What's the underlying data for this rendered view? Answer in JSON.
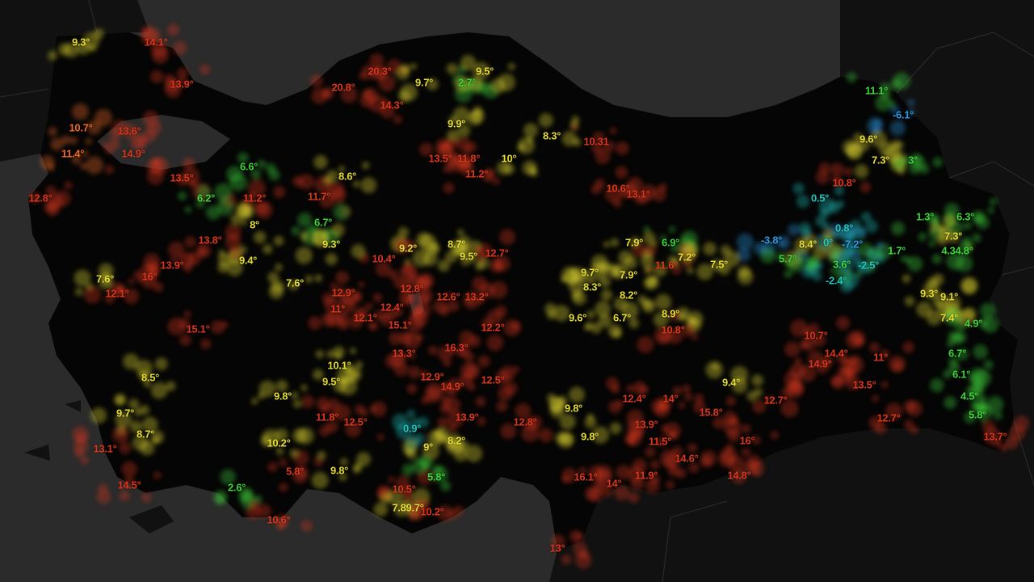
{
  "map": {
    "colors": {
      "sea": "#2b2b2b",
      "outside_land": "#111111",
      "country_land": "#050505",
      "border": "#2e2e2e",
      "red": "#d8371c",
      "orange": "#f06a24",
      "yellow": "#e4dc32",
      "green": "#3fd23a",
      "cyan": "#22c6c0",
      "blue": "#2c98e2"
    },
    "temperature_labels": [
      {
        "t": "9.3°",
        "c": "yellow"
      },
      {
        "t": "14.1°",
        "c": "red"
      },
      {
        "t": "13.9°",
        "c": "red"
      },
      {
        "t": "13.6°",
        "c": "red"
      },
      {
        "t": "14.9°",
        "c": "red"
      },
      {
        "t": "10.7°",
        "c": "orange"
      },
      {
        "t": "11.4°",
        "c": "orange"
      },
      {
        "t": "6.6°",
        "c": "green"
      },
      {
        "t": "20.3°",
        "c": "red"
      },
      {
        "t": "20.8°",
        "c": "red"
      },
      {
        "t": "14.3°",
        "c": "red"
      },
      {
        "t": "9.7°",
        "c": "yellow"
      },
      {
        "t": "2.7°",
        "c": "green"
      },
      {
        "t": "9.5°",
        "c": "yellow"
      },
      {
        "t": "9.9°",
        "c": "yellow"
      },
      {
        "t": "8.3°",
        "c": "yellow"
      },
      {
        "t": "13.5°",
        "c": "red"
      },
      {
        "t": "10°",
        "c": "yellow"
      },
      {
        "t": "11.8°",
        "c": "red"
      },
      {
        "t": "10.31",
        "c": "red"
      },
      {
        "t": "-6.1°",
        "c": "blue"
      },
      {
        "t": "9.6°",
        "c": "yellow"
      },
      {
        "t": "7.3°",
        "c": "yellow"
      },
      {
        "t": "3°",
        "c": "green"
      },
      {
        "t": "10.8°",
        "c": "red"
      },
      {
        "t": "0.5°",
        "c": "cyan"
      },
      {
        "t": "6.3°",
        "c": "green"
      },
      {
        "t": "1.3°",
        "c": "green"
      },
      {
        "t": "7.3°",
        "c": "yellow"
      },
      {
        "t": "4.34.8°",
        "c": "green"
      },
      {
        "t": "1.7°",
        "c": "green"
      },
      {
        "t": "0.8°",
        "c": "cyan"
      },
      {
        "t": "-7.2°",
        "c": "blue"
      },
      {
        "t": "0°",
        "c": "cyan"
      },
      {
        "t": "8.4°",
        "c": "yellow"
      },
      {
        "t": "-3.8°",
        "c": "blue"
      },
      {
        "t": "3.6°",
        "c": "green"
      },
      {
        "t": "-2.5°",
        "c": "cyan"
      },
      {
        "t": "-2.4°",
        "c": "cyan"
      },
      {
        "t": "5.7°",
        "c": "green"
      },
      {
        "t": "7.9°",
        "c": "yellow"
      },
      {
        "t": "6.9°",
        "c": "green"
      },
      {
        "t": "7.5°",
        "c": "yellow"
      },
      {
        "t": "11.6°",
        "c": "red"
      },
      {
        "t": "7.2°",
        "c": "yellow"
      },
      {
        "t": "7.9°",
        "c": "yellow"
      },
      {
        "t": "8.2°",
        "c": "yellow"
      },
      {
        "t": "8.9°",
        "c": "yellow"
      },
      {
        "t": "9.6°",
        "c": "yellow"
      },
      {
        "t": "6.7°",
        "c": "yellow"
      },
      {
        "t": "10.8°",
        "c": "red"
      },
      {
        "t": "9.3°",
        "c": "yellow"
      },
      {
        "t": "9.1°",
        "c": "yellow"
      },
      {
        "t": "7.4°",
        "c": "yellow"
      },
      {
        "t": "4.9°",
        "c": "green"
      },
      {
        "t": "6.7°",
        "c": "green"
      },
      {
        "t": "6.1°",
        "c": "green"
      },
      {
        "t": "4.5°",
        "c": "green"
      },
      {
        "t": "5.8°",
        "c": "green"
      },
      {
        "t": "13.7°",
        "c": "red"
      },
      {
        "t": "12.7°",
        "c": "red"
      },
      {
        "t": "13.5°",
        "c": "red"
      },
      {
        "t": "11°",
        "c": "red"
      },
      {
        "t": "14.4°",
        "c": "red"
      },
      {
        "t": "10.7°",
        "c": "red"
      },
      {
        "t": "14.9°",
        "c": "red"
      },
      {
        "t": "9.4°",
        "c": "yellow"
      },
      {
        "t": "14°",
        "c": "red"
      },
      {
        "t": "12.4°",
        "c": "red"
      },
      {
        "t": "9.8°",
        "c": "yellow"
      },
      {
        "t": "15.8°",
        "c": "red"
      },
      {
        "t": "16°",
        "c": "red"
      },
      {
        "t": "14.8°",
        "c": "red"
      },
      {
        "t": "13.9°",
        "c": "red"
      },
      {
        "t": "11.5°",
        "c": "red"
      },
      {
        "t": "14.6°",
        "c": "red"
      },
      {
        "t": "11.9°",
        "c": "red"
      },
      {
        "t": "14°",
        "c": "red"
      },
      {
        "t": "16.1°",
        "c": "red"
      },
      {
        "t": "13°",
        "c": "red"
      },
      {
        "t": "9.8°",
        "c": "yellow"
      },
      {
        "t": "12.7°",
        "c": "red"
      },
      {
        "t": "15.1°",
        "c": "red"
      },
      {
        "t": "12.1°",
        "c": "red"
      },
      {
        "t": "11°",
        "c": "red"
      },
      {
        "t": "12.9°",
        "c": "red"
      },
      {
        "t": "12.8°",
        "c": "red"
      },
      {
        "t": "12.2°",
        "c": "red"
      },
      {
        "t": "16.3°",
        "c": "red"
      },
      {
        "t": "12.5°",
        "c": "red"
      },
      {
        "t": "14.9°",
        "c": "red"
      },
      {
        "t": "12.9°",
        "c": "red"
      },
      {
        "t": "0.9°",
        "c": "cyan"
      },
      {
        "t": "9.5°",
        "c": "yellow"
      },
      {
        "t": "10.1°",
        "c": "yellow"
      },
      {
        "t": "11.8°",
        "c": "red"
      },
      {
        "t": "12.5°",
        "c": "red"
      },
      {
        "t": "13.9°",
        "c": "red"
      },
      {
        "t": "12.8°",
        "c": "red"
      },
      {
        "t": "8.2°",
        "c": "yellow"
      },
      {
        "t": "9°",
        "c": "yellow"
      },
      {
        "t": "9.8°",
        "c": "yellow"
      },
      {
        "t": "10.5°",
        "c": "red"
      },
      {
        "t": "5.8°",
        "c": "green"
      },
      {
        "t": "7.89.7°",
        "c": "yellow"
      },
      {
        "t": "10.2°",
        "c": "red"
      },
      {
        "t": "10.6°",
        "c": "red"
      },
      {
        "t": "14.5°",
        "c": "red"
      },
      {
        "t": "5.8°",
        "c": "red"
      },
      {
        "t": "2.6°",
        "c": "green"
      },
      {
        "t": "13.5°",
        "c": "red"
      },
      {
        "t": "11.2°",
        "c": "red"
      },
      {
        "t": "6.2°",
        "c": "green"
      },
      {
        "t": "12.8°",
        "c": "red"
      },
      {
        "t": "13.8°",
        "c": "red"
      },
      {
        "t": "13.9°",
        "c": "red"
      },
      {
        "t": "16°",
        "c": "red"
      },
      {
        "t": "7.6°",
        "c": "yellow"
      },
      {
        "t": "12.1°",
        "c": "red"
      },
      {
        "t": "15.1°",
        "c": "red"
      },
      {
        "t": "9.4°",
        "c": "yellow"
      },
      {
        "t": "8°",
        "c": "yellow"
      },
      {
        "t": "8.7°",
        "c": "yellow"
      },
      {
        "t": "9.5°",
        "c": "yellow"
      },
      {
        "t": "9.2°",
        "c": "yellow"
      },
      {
        "t": "12.7°",
        "c": "red"
      },
      {
        "t": "10.4°",
        "c": "red"
      },
      {
        "t": "12.6°",
        "c": "red"
      },
      {
        "t": "13.2°",
        "c": "red"
      },
      {
        "t": "11.2°",
        "c": "red"
      },
      {
        "t": "10.6°",
        "c": "red"
      },
      {
        "t": "13.1°",
        "c": "red"
      },
      {
        "t": "9.7°",
        "c": "yellow"
      },
      {
        "t": "8.3°",
        "c": "yellow"
      },
      {
        "t": "12.4°",
        "c": "red"
      },
      {
        "t": "13.3°",
        "c": "red"
      },
      {
        "t": "11.7°",
        "c": "red"
      },
      {
        "t": "8.6°",
        "c": "yellow"
      },
      {
        "t": "6.7°",
        "c": "green"
      },
      {
        "t": "9.3°",
        "c": "yellow"
      },
      {
        "t": "7.6°",
        "c": "yellow"
      },
      {
        "t": "8.5°",
        "c": "yellow"
      },
      {
        "t": "9.7°",
        "c": "yellow"
      },
      {
        "t": "8.7°",
        "c": "yellow"
      },
      {
        "t": "10.2°",
        "c": "yellow"
      },
      {
        "t": "9.8°",
        "c": "yellow"
      },
      {
        "t": "13.1°",
        "c": "red"
      },
      {
        "t": "11.1°",
        "c": "green"
      }
    ]
  }
}
